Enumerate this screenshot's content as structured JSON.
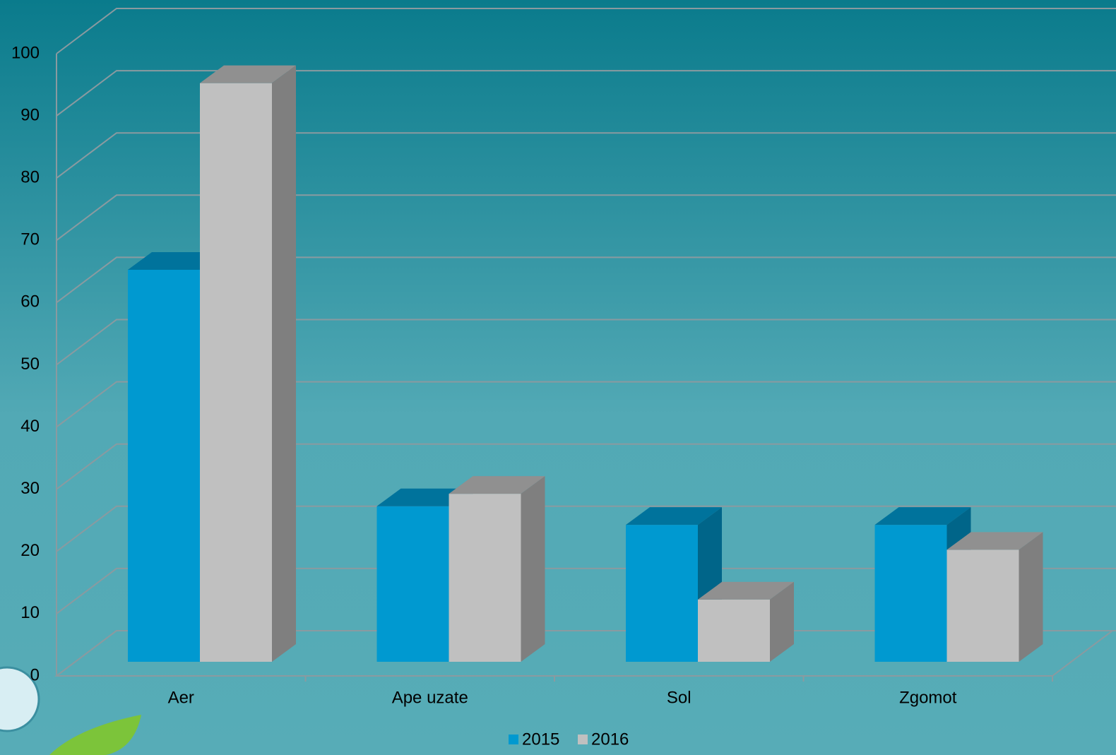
{
  "chart_data": {
    "type": "bar3d",
    "categories": [
      "Aer",
      "Ape uzate",
      "Sol",
      "Zgomot"
    ],
    "series": [
      {
        "name": "2015",
        "color": "#0099d0",
        "values": [
          63,
          25,
          22,
          22
        ]
      },
      {
        "name": "2016",
        "color": "#c0c0c0",
        "values": [
          93,
          27,
          10,
          18
        ]
      }
    ],
    "ylim": [
      0,
      100
    ],
    "yticks": [
      0,
      10,
      20,
      30,
      40,
      50,
      60,
      70,
      80,
      90,
      100
    ],
    "grid": true,
    "legend": "bottom"
  }
}
